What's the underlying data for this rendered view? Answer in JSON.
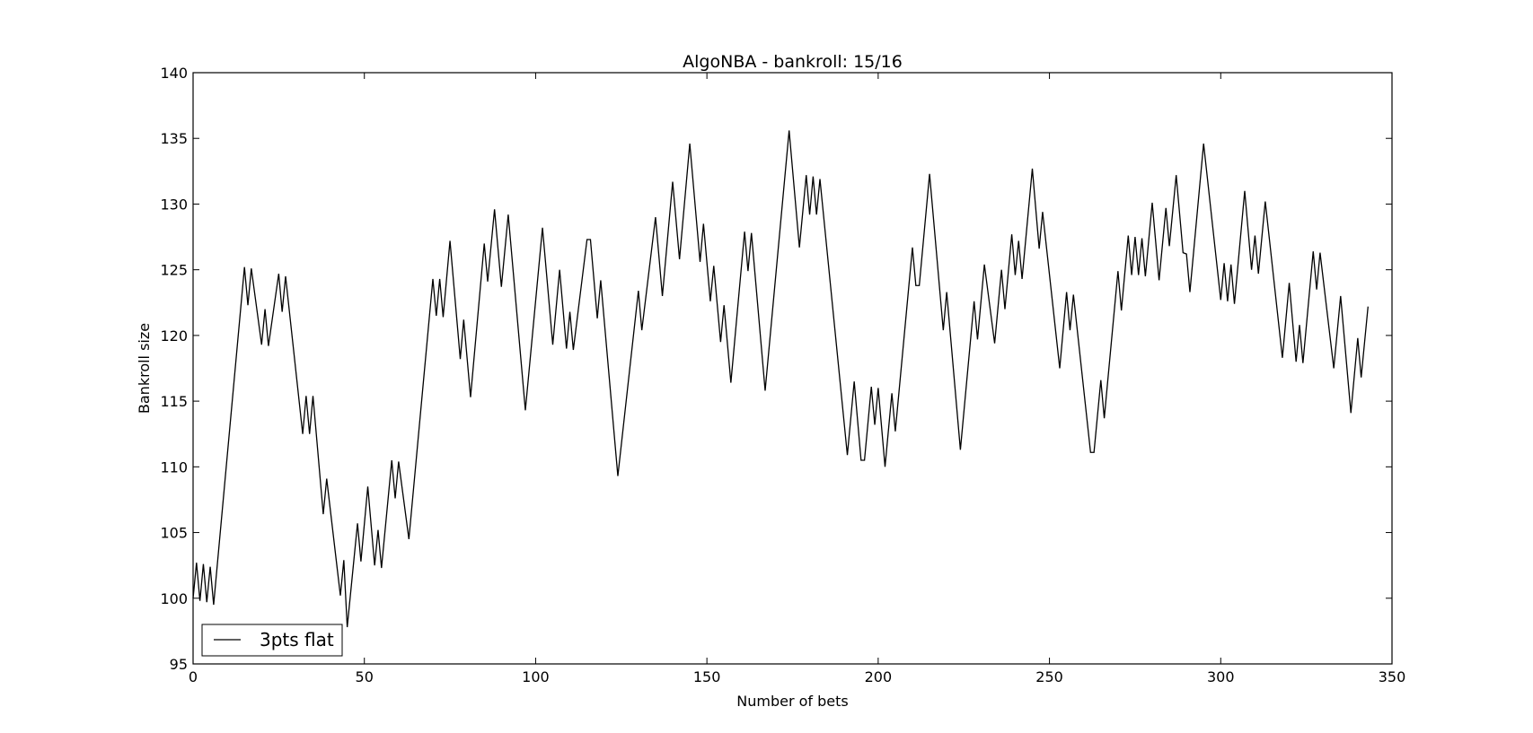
{
  "chart_data": {
    "type": "line",
    "title": "AlgoNBA - bankroll: 15/16",
    "xlabel": "Number of bets",
    "ylabel": "Bankroll size",
    "xlim": [
      0,
      350
    ],
    "ylim": [
      95,
      140
    ],
    "xticks": [
      0,
      50,
      100,
      150,
      200,
      250,
      300,
      350
    ],
    "yticks": [
      95,
      100,
      105,
      110,
      115,
      120,
      125,
      130,
      135,
      140
    ],
    "grid": false,
    "legend_position": "lower-left",
    "series": [
      {
        "name": "3pts flat",
        "color": "#000000",
        "points": [
          [
            0,
            100.0
          ],
          [
            1,
            102.7
          ],
          [
            2,
            99.8
          ],
          [
            3,
            102.6
          ],
          [
            4,
            99.7
          ],
          [
            5,
            102.4
          ],
          [
            6,
            99.5
          ],
          [
            15,
            125.2
          ],
          [
            16,
            122.3
          ],
          [
            17,
            125.1
          ],
          [
            20,
            119.3
          ],
          [
            21,
            122.0
          ],
          [
            22,
            119.2
          ],
          [
            25,
            124.7
          ],
          [
            26,
            121.8
          ],
          [
            27,
            124.5
          ],
          [
            32,
            112.5
          ],
          [
            33,
            115.4
          ],
          [
            34,
            112.5
          ],
          [
            35,
            115.4
          ],
          [
            38,
            106.4
          ],
          [
            39,
            109.1
          ],
          [
            43,
            100.2
          ],
          [
            44,
            102.9
          ],
          [
            45,
            97.8
          ],
          [
            48,
            105.7
          ],
          [
            49,
            102.8
          ],
          [
            51,
            108.5
          ],
          [
            53,
            102.5
          ],
          [
            54,
            105.2
          ],
          [
            55,
            102.3
          ],
          [
            58,
            110.5
          ],
          [
            59,
            107.6
          ],
          [
            60,
            110.4
          ],
          [
            63,
            104.5
          ],
          [
            70,
            124.3
          ],
          [
            71,
            121.5
          ],
          [
            72,
            124.3
          ],
          [
            73,
            121.4
          ],
          [
            75,
            127.2
          ],
          [
            78,
            118.2
          ],
          [
            79,
            121.2
          ],
          [
            81,
            115.3
          ],
          [
            85,
            127.0
          ],
          [
            86,
            124.1
          ],
          [
            88,
            129.6
          ],
          [
            90,
            123.7
          ],
          [
            92,
            129.2
          ],
          [
            97,
            114.3
          ],
          [
            102,
            128.2
          ],
          [
            105,
            119.3
          ],
          [
            107,
            125.0
          ],
          [
            109,
            119.0
          ],
          [
            110,
            121.8
          ],
          [
            111,
            118.9
          ],
          [
            115,
            127.3
          ],
          [
            116,
            127.3
          ],
          [
            118,
            121.3
          ],
          [
            119,
            124.2
          ],
          [
            124,
            109.3
          ],
          [
            130,
            123.4
          ],
          [
            131,
            120.4
          ],
          [
            135,
            129.0
          ],
          [
            137,
            123.0
          ],
          [
            140,
            131.7
          ],
          [
            142,
            125.8
          ],
          [
            145,
            134.6
          ],
          [
            148,
            125.6
          ],
          [
            149,
            128.5
          ],
          [
            151,
            122.6
          ],
          [
            152,
            125.3
          ],
          [
            154,
            119.5
          ],
          [
            155,
            122.3
          ],
          [
            157,
            116.4
          ],
          [
            161,
            127.9
          ],
          [
            162,
            124.9
          ],
          [
            163,
            127.8
          ],
          [
            167,
            115.8
          ],
          [
            174,
            135.6
          ],
          [
            177,
            126.7
          ],
          [
            179,
            132.2
          ],
          [
            180,
            129.2
          ],
          [
            181,
            132.1
          ],
          [
            182,
            129.2
          ],
          [
            183,
            131.9
          ],
          [
            191,
            110.9
          ],
          [
            193,
            116.5
          ],
          [
            195,
            110.5
          ],
          [
            196,
            110.5
          ],
          [
            198,
            116.1
          ],
          [
            199,
            113.2
          ],
          [
            200,
            116.0
          ],
          [
            202,
            110.0
          ],
          [
            204,
            115.6
          ],
          [
            205,
            112.7
          ],
          [
            210,
            126.7
          ],
          [
            211,
            123.8
          ],
          [
            212,
            123.8
          ],
          [
            215,
            132.3
          ],
          [
            219,
            120.4
          ],
          [
            220,
            123.3
          ],
          [
            224,
            111.3
          ],
          [
            228,
            122.6
          ],
          [
            229,
            119.7
          ],
          [
            231,
            125.4
          ],
          [
            234,
            119.4
          ],
          [
            236,
            125.0
          ],
          [
            237,
            122.0
          ],
          [
            239,
            127.7
          ],
          [
            240,
            124.6
          ],
          [
            241,
            127.2
          ],
          [
            242,
            124.3
          ],
          [
            245,
            132.7
          ],
          [
            247,
            126.6
          ],
          [
            248,
            129.4
          ],
          [
            253,
            117.5
          ],
          [
            255,
            123.3
          ],
          [
            256,
            120.4
          ],
          [
            257,
            123.1
          ],
          [
            262,
            111.1
          ],
          [
            263,
            111.1
          ],
          [
            265,
            116.6
          ],
          [
            266,
            113.7
          ],
          [
            270,
            124.9
          ],
          [
            271,
            121.9
          ],
          [
            273,
            127.6
          ],
          [
            274,
            124.6
          ],
          [
            275,
            127.5
          ],
          [
            276,
            124.6
          ],
          [
            277,
            127.4
          ],
          [
            278,
            124.5
          ],
          [
            280,
            130.1
          ],
          [
            282,
            124.2
          ],
          [
            284,
            129.7
          ],
          [
            285,
            126.8
          ],
          [
            287,
            132.2
          ],
          [
            289,
            126.3
          ],
          [
            290,
            126.2
          ],
          [
            291,
            123.3
          ],
          [
            295,
            134.6
          ],
          [
            300,
            122.7
          ],
          [
            301,
            125.5
          ],
          [
            302,
            122.6
          ],
          [
            303,
            125.4
          ],
          [
            304,
            122.4
          ],
          [
            307,
            131.0
          ],
          [
            309,
            125.0
          ],
          [
            310,
            127.6
          ],
          [
            311,
            124.7
          ],
          [
            313,
            130.2
          ],
          [
            318,
            118.3
          ],
          [
            320,
            124.0
          ],
          [
            322,
            118.0
          ],
          [
            323,
            120.8
          ],
          [
            324,
            117.9
          ],
          [
            327,
            126.4
          ],
          [
            328,
            123.5
          ],
          [
            329,
            126.3
          ],
          [
            333,
            117.5
          ],
          [
            335,
            123.0
          ],
          [
            338,
            114.1
          ],
          [
            340,
            119.8
          ],
          [
            341,
            116.8
          ],
          [
            343,
            122.2
          ]
        ]
      }
    ]
  }
}
